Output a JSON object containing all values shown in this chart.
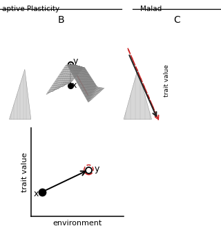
{
  "title_left": "aptive Plasticity",
  "title_right": "Malad",
  "panel_B_label": "B",
  "panel_C_label": "C",
  "bg_color": "#ffffff",
  "grid_color": "#888888",
  "arrow_color": "#111111",
  "dashed_color": "#cc2222",
  "text_color": "#111111",
  "xlabel": "environment",
  "ylabel": "trait value"
}
